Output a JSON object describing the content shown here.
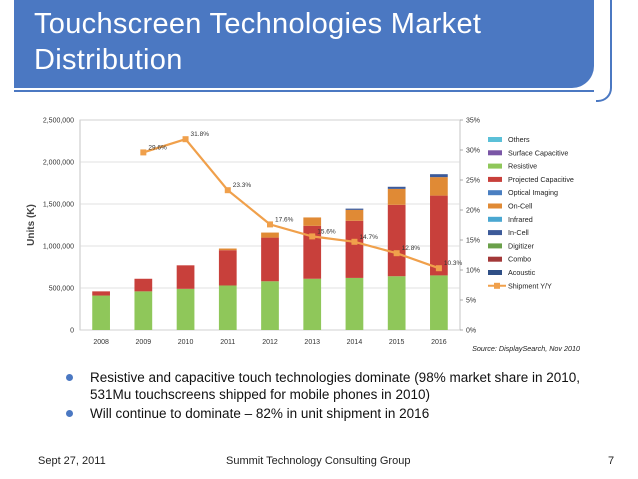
{
  "slide": {
    "title": "Touchscreen Technologies Market Distribution",
    "bullets": [
      "Resistive and capacitive touch technologies dominate (98% market share in 2010, 531Mu touchscreens shipped for mobile phones in 2010)",
      "Will continue to dominate – 82% in unit shipment in 2016"
    ],
    "footer": {
      "date": "Sept 27, 2011",
      "org": "Summit Technology Consulting Group",
      "page": "7"
    },
    "accent_color": "#4b78c2"
  },
  "chart_data": {
    "type": "bar",
    "stacked": true,
    "categories": [
      "2008",
      "2009",
      "2010",
      "2011",
      "2012",
      "2013",
      "2014",
      "2015",
      "2016"
    ],
    "series": [
      {
        "name": "Others",
        "color": "#5bc0d8",
        "values": [
          0,
          0,
          0,
          0,
          0,
          0,
          0,
          0,
          0
        ]
      },
      {
        "name": "Surface Capacitive",
        "color": "#7a56a6",
        "values": [
          0,
          0,
          0,
          0,
          0,
          0,
          0,
          0,
          0
        ]
      },
      {
        "name": "Resistive",
        "color": "#8fc75a",
        "values": [
          410000,
          460000,
          490000,
          530000,
          580000,
          610000,
          620000,
          640000,
          650000
        ]
      },
      {
        "name": "Projected Capacitive",
        "color": "#c8403b",
        "values": [
          50000,
          150000,
          280000,
          420000,
          520000,
          630000,
          680000,
          850000,
          950000
        ]
      },
      {
        "name": "Optical Imaging",
        "color": "#4a7fc1",
        "values": [
          0,
          0,
          0,
          0,
          0,
          0,
          0,
          0,
          0
        ]
      },
      {
        "name": "On-Cell",
        "color": "#e08a35",
        "values": [
          0,
          0,
          0,
          20000,
          60000,
          100000,
          130000,
          190000,
          220000
        ]
      },
      {
        "name": "Infrared",
        "color": "#4aa7d1",
        "values": [
          0,
          0,
          0,
          0,
          0,
          0,
          0,
          0,
          0
        ]
      },
      {
        "name": "In-Cell",
        "color": "#3c5a99",
        "values": [
          0,
          0,
          0,
          0,
          0,
          0,
          15000,
          25000,
          35000
        ]
      },
      {
        "name": "Digitizer",
        "color": "#6aa04a",
        "values": [
          0,
          0,
          0,
          0,
          0,
          0,
          0,
          0,
          0
        ]
      },
      {
        "name": "Combo",
        "color": "#a33838",
        "values": [
          0,
          0,
          0,
          0,
          0,
          0,
          0,
          0,
          0
        ]
      },
      {
        "name": "Acoustic",
        "color": "#2f4f86",
        "values": [
          0,
          0,
          0,
          0,
          0,
          0,
          0,
          0,
          0
        ]
      }
    ],
    "line": {
      "name": "Shipment Y/Y",
      "color": "#f0a04b",
      "categories": [
        "2009",
        "2010",
        "2011",
        "2012",
        "2013",
        "2014",
        "2015",
        "2016"
      ],
      "values": [
        29.6,
        31.8,
        23.3,
        17.6,
        15.6,
        14.7,
        12.8,
        10.3
      ],
      "labels": [
        "29.6%",
        "31.8%",
        "23.3%",
        "17.6%",
        "15.6%",
        "14.7%",
        "12.8%",
        "10.3%"
      ]
    },
    "ylabel": "Units (K)",
    "ylim": [
      0,
      2500000
    ],
    "yticks": [
      "0",
      "500,000",
      "1,000,000",
      "1,500,000",
      "2,000,000",
      "2,500,000"
    ],
    "y2lim": [
      0,
      35
    ],
    "y2ticks": [
      "0%",
      "5%",
      "10%",
      "15%",
      "20%",
      "25%",
      "30%",
      "35%"
    ],
    "source": "Source: DisplaySearch, Nov 2010",
    "legend_position": "right"
  }
}
